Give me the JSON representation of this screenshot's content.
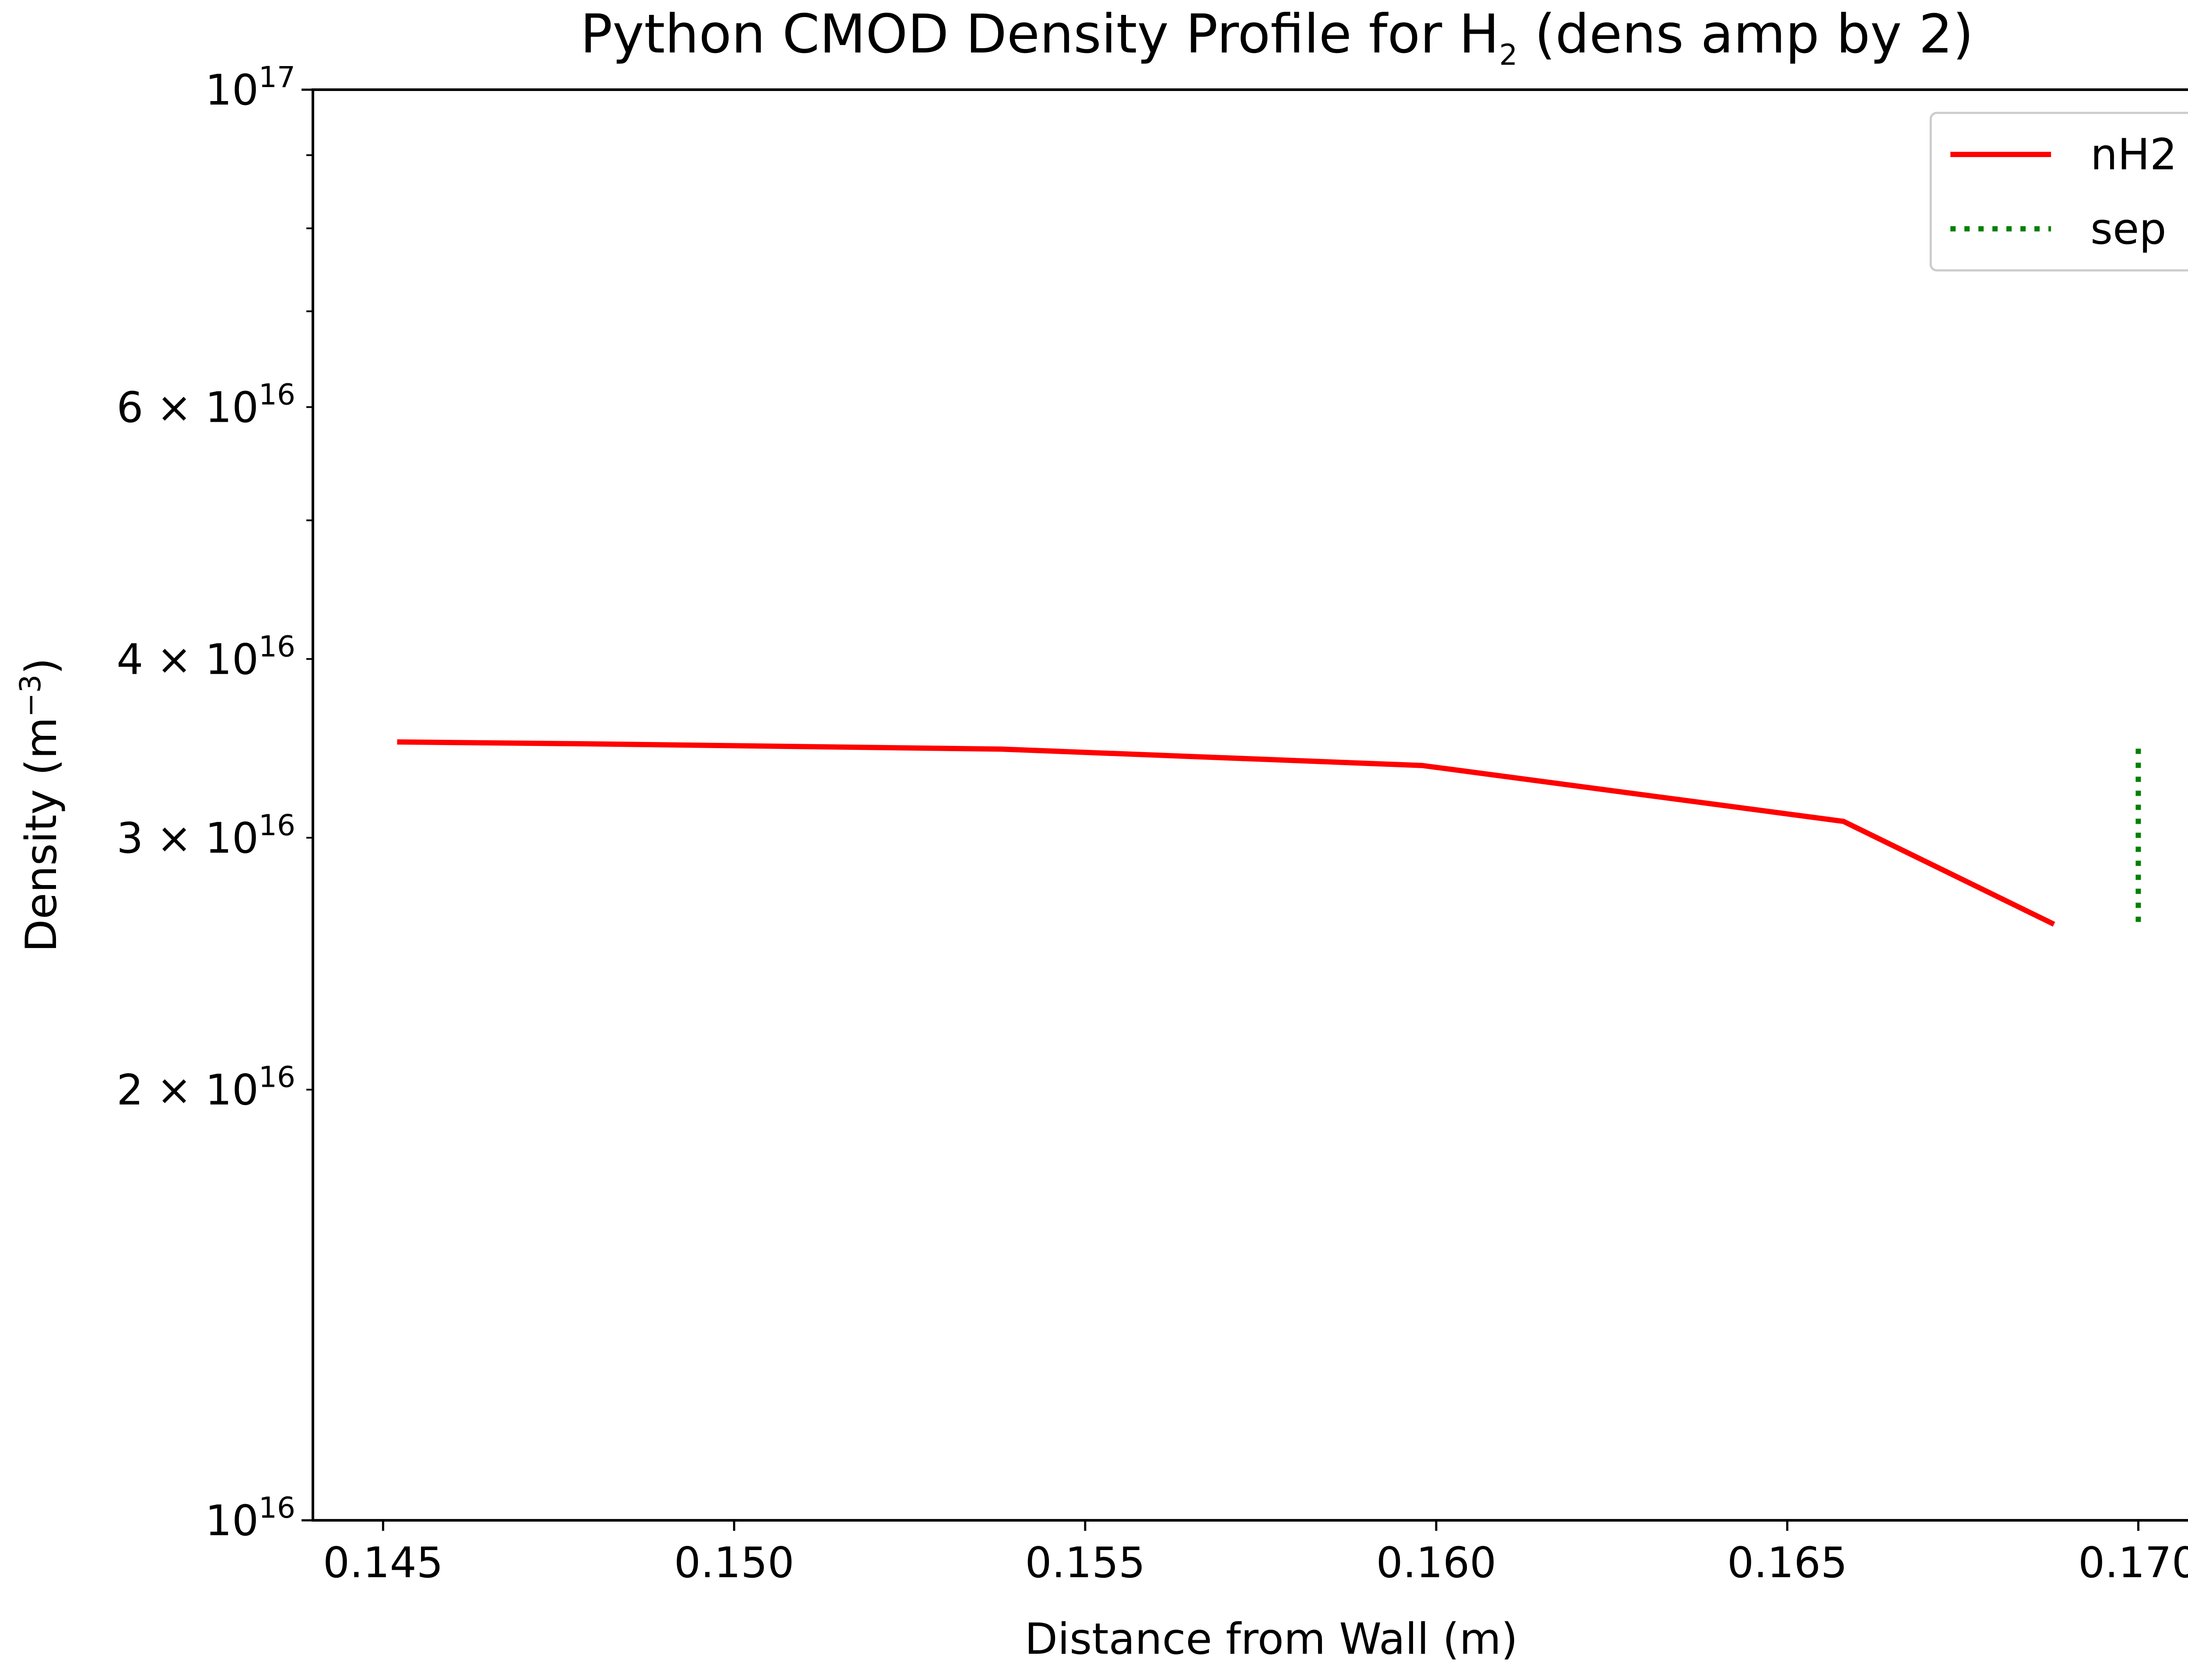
{
  "chart_data": {
    "type": "line",
    "title": {
      "main": "Python CMOD Density Profile for H",
      "subscript": "2",
      "suffix": " (dens amp by 2)"
    },
    "xlabel": "Distance from Wall (m)",
    "ylabel": "Density (m",
    "ylabel_exponent": "−3",
    "ylabel_close": ")",
    "xlim": [
      0.144,
      0.1713
    ],
    "ylim": [
      1e+16,
      1e+17
    ],
    "yscale": "log",
    "grid": false,
    "legend_position": "top-right",
    "x_ticks": [
      {
        "value": 0.145,
        "label": "0.145"
      },
      {
        "value": 0.15,
        "label": "0.150"
      },
      {
        "value": 0.155,
        "label": "0.155"
      },
      {
        "value": 0.16,
        "label": "0.160"
      },
      {
        "value": 0.165,
        "label": "0.165"
      },
      {
        "value": 0.17,
        "label": "0.170"
      }
    ],
    "y_major_ticks": [
      {
        "value": 1e+16,
        "mantissa": "",
        "base": "10",
        "exponent": "16"
      },
      {
        "value": 1e+17,
        "mantissa": "",
        "base": "10",
        "exponent": "17"
      }
    ],
    "y_minor_ticks": [
      {
        "value": 2e+16,
        "mantissa": "2 × ",
        "base": "10",
        "exponent": "16"
      },
      {
        "value": 3e+16,
        "mantissa": "3 × ",
        "base": "10",
        "exponent": "16"
      },
      {
        "value": 4e+16,
        "mantissa": "4 × ",
        "base": "10",
        "exponent": "16"
      },
      {
        "value": 5e+16,
        "mantissa": "",
        "base": "",
        "exponent": ""
      },
      {
        "value": 6e+16,
        "mantissa": "6 × ",
        "base": "10",
        "exponent": "16"
      },
      {
        "value": 7e+16,
        "mantissa": "",
        "base": "",
        "exponent": ""
      },
      {
        "value": 8e+16,
        "mantissa": "",
        "base": "",
        "exponent": ""
      },
      {
        "value": 9e+16,
        "mantissa": "",
        "base": "",
        "exponent": ""
      }
    ],
    "series": [
      {
        "name": "nH2",
        "color": "#ff0000",
        "style": "solid",
        "points": [
          [
            0.1452,
            3.5e+16
          ],
          [
            0.1478,
            3.49e+16
          ],
          [
            0.1538,
            3.46e+16
          ],
          [
            0.1598,
            3.37e+16
          ],
          [
            0.1658,
            3.08e+16
          ],
          [
            0.1688,
            2.61e+16
          ]
        ]
      },
      {
        "name": "sep",
        "color": "#008000",
        "style": "dotted",
        "points": [
          [
            0.17,
            2.62e+16
          ],
          [
            0.17,
            3.47e+16
          ]
        ]
      }
    ]
  }
}
